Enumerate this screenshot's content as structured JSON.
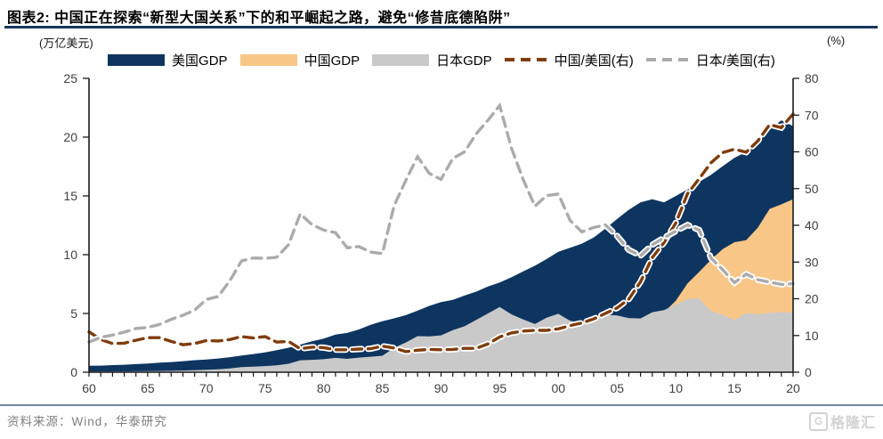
{
  "header": {
    "title": "图表2:  中国正在探索“新型大国关系”下的和平崛起之路，避免“修昔底德陷阱”"
  },
  "colors": {
    "title_rule": "#17375e",
    "divider_rule": "#75879f",
    "axis_line": "#1a1a1a",
    "axis_text": "#404040",
    "us_area": "#0e3560",
    "china_area": "#f8c788",
    "japan_area": "#c9c9c9",
    "china_us_line": "#7f3d0c",
    "japan_us_line": "#ababab",
    "halo": "#ffffff"
  },
  "axes": {
    "left_unit": "(万亿美元)",
    "right_unit": "(%)"
  },
  "legend": [
    {
      "label": "美国GDP",
      "type": "area",
      "color": "#0e3560",
      "icon": "us-gdp-swatch"
    },
    {
      "label": "中国GDP",
      "type": "area",
      "color": "#f8c788",
      "icon": "china-gdp-swatch"
    },
    {
      "label": "日本GDP",
      "type": "area",
      "color": "#c9c9c9",
      "icon": "japan-gdp-swatch"
    },
    {
      "label": "中国/美国(右)",
      "type": "line",
      "color": "#7f3d0c",
      "icon": "china-us-ratio-swatch"
    },
    {
      "label": "日本/美国(右)",
      "type": "line",
      "color": "#ababab",
      "icon": "japan-us-ratio-swatch"
    }
  ],
  "footer": {
    "source": "资料来源：Wind，华泰研究",
    "watermark_mark": "G",
    "watermark": "格隆汇"
  },
  "chart_data": {
    "type": "area+line",
    "title": "中美日GDP及比值 1960-2020",
    "years": [
      1960,
      1961,
      1962,
      1963,
      1964,
      1965,
      1966,
      1967,
      1968,
      1969,
      1970,
      1971,
      1972,
      1973,
      1974,
      1975,
      1976,
      1977,
      1978,
      1979,
      1980,
      1981,
      1982,
      1983,
      1984,
      1985,
      1986,
      1987,
      1988,
      1989,
      1990,
      1991,
      1992,
      1993,
      1994,
      1995,
      1996,
      1997,
      1998,
      1999,
      2000,
      2001,
      2002,
      2003,
      2004,
      2005,
      2006,
      2007,
      2008,
      2009,
      2010,
      2011,
      2012,
      2013,
      2014,
      2015,
      2016,
      2017,
      2018,
      2019,
      2020
    ],
    "x_tick_labels": [
      "60",
      "65",
      "70",
      "75",
      "80",
      "85",
      "90",
      "95",
      "00",
      "05",
      "10",
      "15",
      "20"
    ],
    "left_axis": {
      "unit": "万亿美元",
      "min": 0,
      "max": 25,
      "ticks": [
        0,
        5,
        10,
        15,
        20,
        25
      ]
    },
    "right_axis": {
      "unit": "%",
      "min": 0,
      "max": 80,
      "ticks": [
        0,
        10,
        20,
        30,
        40,
        50,
        60,
        70,
        80
      ]
    },
    "areas": [
      {
        "id": "us-gdp",
        "name": "美国GDP",
        "axis": "left",
        "color": "#0e3560",
        "values": [
          0.543,
          0.563,
          0.605,
          0.639,
          0.686,
          0.744,
          0.815,
          0.862,
          0.943,
          1.02,
          1.073,
          1.165,
          1.279,
          1.425,
          1.545,
          1.684,
          1.873,
          2.082,
          2.351,
          2.627,
          2.857,
          3.207,
          3.344,
          3.634,
          4.038,
          4.339,
          4.58,
          4.855,
          5.236,
          5.642,
          5.963,
          6.158,
          6.52,
          6.859,
          7.287,
          7.64,
          8.073,
          8.578,
          9.063,
          9.631,
          10.251,
          10.582,
          10.936,
          11.458,
          12.214,
          13.037,
          13.815,
          14.452,
          14.713,
          14.449,
          14.992,
          15.543,
          16.197,
          16.785,
          17.527,
          18.238,
          18.745,
          19.543,
          20.612,
          21.433,
          20.937
        ]
      },
      {
        "id": "china-gdp",
        "name": "中国GDP",
        "axis": "left",
        "color": "#f8c788",
        "values": [
          0.06,
          0.05,
          0.047,
          0.051,
          0.06,
          0.07,
          0.077,
          0.072,
          0.071,
          0.079,
          0.093,
          0.1,
          0.113,
          0.139,
          0.144,
          0.163,
          0.154,
          0.175,
          0.15,
          0.178,
          0.191,
          0.196,
          0.205,
          0.231,
          0.26,
          0.31,
          0.301,
          0.273,
          0.312,
          0.348,
          0.361,
          0.383,
          0.427,
          0.445,
          0.564,
          0.734,
          0.864,
          0.962,
          1.029,
          1.094,
          1.211,
          1.339,
          1.471,
          1.66,
          1.955,
          2.286,
          2.752,
          3.55,
          4.594,
          5.102,
          6.087,
          7.552,
          8.532,
          9.57,
          10.476,
          11.062,
          11.233,
          12.31,
          13.895,
          14.28,
          14.723
        ]
      },
      {
        "id": "japan-gdp",
        "name": "日本GDP",
        "axis": "left",
        "color": "#c9c9c9",
        "values": [
          0.044,
          0.054,
          0.061,
          0.07,
          0.082,
          0.091,
          0.106,
          0.124,
          0.147,
          0.172,
          0.213,
          0.24,
          0.318,
          0.432,
          0.48,
          0.521,
          0.586,
          0.721,
          1.013,
          1.055,
          1.105,
          1.219,
          1.134,
          1.243,
          1.319,
          1.401,
          2.079,
          2.533,
          3.071,
          3.055,
          3.133,
          3.584,
          3.909,
          4.455,
          4.998,
          5.546,
          4.924,
          4.492,
          4.098,
          4.636,
          4.968,
          4.375,
          4.182,
          4.519,
          4.893,
          4.831,
          4.601,
          4.579,
          5.107,
          5.289,
          5.759,
          6.233,
          6.272,
          5.212,
          4.897,
          4.444,
          5.004,
          4.931,
          5.041,
          5.123,
          5.04
        ]
      }
    ],
    "lines": [
      {
        "id": "china-us-ratio",
        "name": "中国/美国(右)",
        "axis": "right",
        "color": "#7f3d0c",
        "values": [
          11.0,
          8.9,
          7.8,
          7.9,
          8.7,
          9.4,
          9.4,
          8.4,
          7.5,
          7.8,
          8.6,
          8.5,
          8.9,
          9.7,
          9.3,
          9.7,
          8.2,
          8.4,
          6.4,
          6.8,
          6.7,
          6.1,
          6.1,
          6.3,
          6.4,
          7.1,
          6.6,
          5.6,
          6.0,
          6.2,
          6.1,
          6.2,
          6.5,
          6.5,
          7.7,
          9.6,
          10.7,
          11.2,
          11.4,
          11.4,
          11.8,
          12.7,
          13.4,
          14.5,
          16.0,
          17.5,
          19.9,
          24.6,
          31.2,
          35.3,
          40.6,
          48.6,
          52.7,
          57.0,
          59.8,
          60.7,
          59.9,
          63.0,
          67.4,
          66.6,
          70.3
        ]
      },
      {
        "id": "japan-us-ratio",
        "name": "日本/美国(右)",
        "axis": "right",
        "color": "#ababab",
        "values": [
          8.2,
          9.5,
          10.1,
          10.9,
          11.9,
          12.2,
          13.0,
          14.4,
          15.5,
          16.9,
          19.8,
          20.6,
          24.9,
          30.3,
          31.1,
          31.0,
          31.3,
          34.7,
          43.1,
          40.2,
          38.7,
          38.0,
          33.9,
          34.2,
          32.7,
          32.3,
          45.4,
          52.2,
          58.7,
          54.1,
          52.5,
          58.2,
          60.0,
          64.9,
          68.6,
          72.6,
          61.0,
          52.4,
          45.2,
          48.1,
          48.5,
          41.3,
          38.2,
          39.4,
          40.1,
          37.1,
          33.3,
          31.7,
          34.7,
          36.6,
          38.4,
          40.1,
          38.7,
          31.1,
          27.9,
          24.4,
          26.7,
          25.2,
          24.5,
          23.9,
          24.1
        ]
      }
    ],
    "layout": {
      "grid": false,
      "legend_position": "top",
      "line_dash": [
        11,
        7
      ]
    }
  }
}
